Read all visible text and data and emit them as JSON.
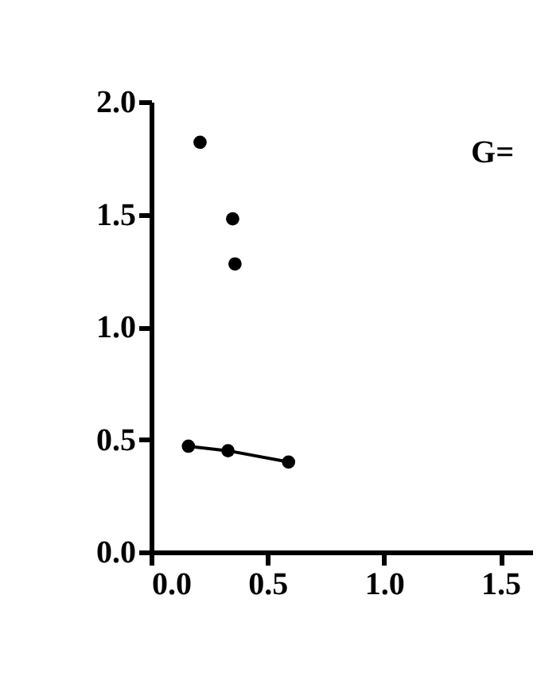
{
  "chart_data": {
    "type": "scatter",
    "series": [
      {
        "color": "#000000",
        "x": [
          0.21,
          0.35,
          0.36
        ],
        "values": [
          1.82,
          1.48,
          1.28
        ]
      },
      {
        "type": "line",
        "color": "#000000",
        "x": [
          0.16,
          0.33,
          0.59
        ],
        "values": [
          0.47,
          0.45,
          0.4
        ]
      }
    ],
    "annotations": [
      "G="
    ],
    "xlim": [
      0,
      1.64
    ],
    "xticks": [
      {
        "value": 0,
        "label": "0.0"
      },
      {
        "value": 0.5,
        "label": "0.5"
      },
      {
        "value": 1,
        "label": "1.0"
      },
      {
        "value": 1.5,
        "label": "1.5"
      }
    ],
    "ylim": [
      0,
      2
    ],
    "yticks": [
      {
        "value": 0,
        "label": "0.0"
      },
      {
        "value": 0.5,
        "label": "0.5"
      },
      {
        "value": 1,
        "label": "1.0"
      },
      {
        "value": 1.5,
        "label": "1.5"
      },
      {
        "value": 2,
        "label": "2.0"
      }
    ],
    "grid": false,
    "marker": "circle"
  }
}
